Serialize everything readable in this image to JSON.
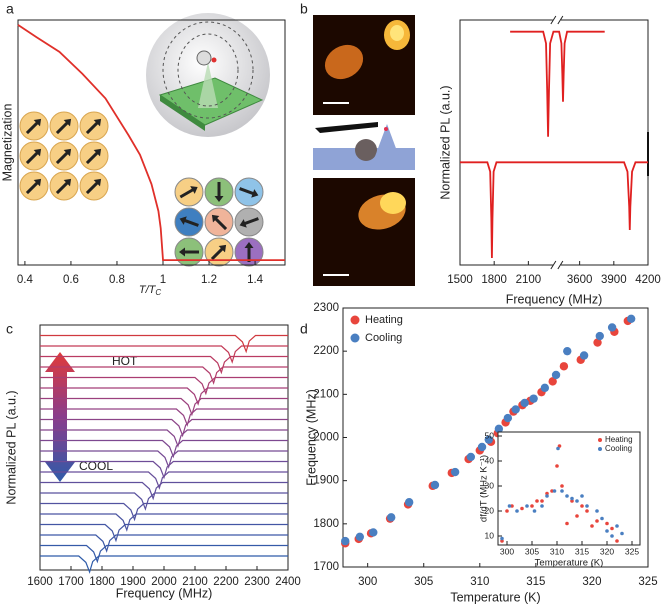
{
  "chart_data": [
    {
      "type": "line",
      "panel_label": "a",
      "xlabel": {
        "text": "T/T",
        "subscript": "C"
      },
      "ylabel": "Magnetization",
      "xlim": [
        0.37,
        1.53
      ],
      "xticks": [
        0.4,
        0.6,
        0.8,
        1.0,
        1.2,
        1.4
      ],
      "ylim": [
        0,
        1
      ],
      "series": [
        {
          "color": "#e0302a",
          "x": [
            0.37,
            0.45,
            0.55,
            0.65,
            0.75,
            0.85,
            0.9,
            0.95,
            0.98,
            0.99,
            1.0,
            1.02,
            1.53
          ],
          "values": [
            0.98,
            0.93,
            0.87,
            0.78,
            0.68,
            0.53,
            0.45,
            0.33,
            0.22,
            0.15,
            0.02,
            0.02,
            0.02
          ]
        }
      ]
    },
    {
      "type": "line",
      "panel_label": "b",
      "xlabel": "Frequency (MHz)",
      "ylabel": "Normalized PL (a.u.)",
      "xlim": [
        1500,
        4200
      ],
      "axis_break": [
        2350,
        3400
      ],
      "xticks": [
        1500,
        1800,
        2100,
        3600,
        3900,
        4200
      ],
      "ylim": [
        0,
        1.05
      ],
      "series": [
        {
          "color": "#e02020",
          "x": [
            1940,
            2230,
            2255,
            2265,
            2273,
            2281,
            2291,
            2320,
            2350,
            3400,
            3420,
            3440,
            3448,
            3454,
            3460,
            3468,
            3490,
            3820
          ],
          "values": [
            1.0,
            1.0,
            0.95,
            0.75,
            0.55,
            0.75,
            0.95,
            1.0,
            1.0,
            1.0,
            1.0,
            0.95,
            0.82,
            0.7,
            0.82,
            0.95,
            1.0,
            1.0
          ]
        },
        {
          "color": "#e02020",
          "x": [
            1500,
            1740,
            1765,
            1775,
            1780,
            1785,
            1795,
            1820,
            2350,
            3400,
            3990,
            4020,
            4035,
            4040,
            4045,
            4060,
            4090,
            4200
          ],
          "values": [
            0.44,
            0.44,
            0.4,
            0.2,
            0.03,
            0.2,
            0.4,
            0.44,
            0.44,
            0.44,
            0.44,
            0.4,
            0.25,
            0.15,
            0.25,
            0.4,
            0.44,
            0.44
          ]
        }
      ]
    },
    {
      "type": "ridgeline",
      "panel_label": "c",
      "xlabel": "Frequency (MHz)",
      "ylabel": "Normalized PL (a.u.)",
      "xlim": [
        1600,
        2400
      ],
      "xticks": [
        1600,
        1700,
        1800,
        1900,
        2000,
        2100,
        2200,
        2300,
        2400
      ],
      "annotations": [
        "HOT",
        "COOL"
      ],
      "series": [
        {
          "color": "#2e5ba9",
          "x": [
            1600,
            1725,
            1748,
            1760,
            1770,
            1790,
            2400
          ],
          "values": [
            0,
            0,
            -0.4,
            -1,
            -0.35,
            0,
            0
          ]
        },
        {
          "color": "#355aa8",
          "x": [
            1600,
            1750,
            1773,
            1785,
            1795,
            1815,
            2400
          ],
          "values": [
            0,
            0,
            -0.4,
            -1,
            -0.35,
            0,
            0
          ]
        },
        {
          "color": "#3c58a6",
          "x": [
            1600,
            1780,
            1803,
            1815,
            1825,
            1845,
            2400
          ],
          "values": [
            0,
            0,
            -0.4,
            -1,
            -0.35,
            0,
            0
          ]
        },
        {
          "color": "#4356a4",
          "x": [
            1600,
            1810,
            1833,
            1845,
            1855,
            1875,
            2400
          ],
          "values": [
            0,
            0,
            -0.4,
            -1,
            -0.35,
            0,
            0
          ]
        },
        {
          "color": "#4a55a2",
          "x": [
            1600,
            1845,
            1868,
            1880,
            1890,
            1910,
            2400
          ],
          "values": [
            0,
            0,
            -0.4,
            -1,
            -0.35,
            0,
            0
          ]
        },
        {
          "color": "#5253a0",
          "x": [
            1600,
            1870,
            1893,
            1905,
            1915,
            1935,
            2400
          ],
          "values": [
            0,
            0,
            -0.4,
            -1,
            -0.35,
            0,
            0
          ]
        },
        {
          "color": "#59519e",
          "x": [
            1600,
            1905,
            1928,
            1940,
            1950,
            1970,
            2400
          ],
          "values": [
            0,
            0,
            -0.4,
            -1,
            -0.35,
            0,
            0
          ]
        },
        {
          "color": "#60509c",
          "x": [
            1600,
            1930,
            1953,
            1965,
            1975,
            1995,
            2400
          ],
          "values": [
            0,
            0,
            -0.4,
            -1,
            -0.35,
            0,
            0
          ]
        },
        {
          "color": "#674e9a",
          "x": [
            1600,
            1950,
            1973,
            1985,
            1995,
            2015,
            2400
          ],
          "values": [
            0,
            0,
            -0.4,
            -1,
            -0.35,
            0,
            0
          ]
        },
        {
          "color": "#6e4c97",
          "x": [
            1600,
            1965,
            1988,
            2000,
            2010,
            2030,
            2400
          ],
          "values": [
            0,
            0,
            -0.4,
            -1,
            -0.35,
            0,
            0
          ]
        },
        {
          "color": "#764a94",
          "x": [
            1600,
            1980,
            2003,
            2015,
            2025,
            2045,
            2400
          ],
          "values": [
            0,
            0,
            -0.4,
            -1,
            -0.35,
            0,
            0
          ]
        },
        {
          "color": "#7d4890",
          "x": [
            1600,
            1995,
            2018,
            2030,
            2040,
            2060,
            2400
          ],
          "values": [
            0,
            0,
            -0.4,
            -1,
            -0.35,
            0,
            0
          ]
        },
        {
          "color": "#85468c",
          "x": [
            1600,
            2010,
            2033,
            2045,
            2055,
            2075,
            2400
          ],
          "values": [
            0,
            0,
            -0.4,
            -1,
            -0.35,
            0,
            0
          ]
        },
        {
          "color": "#8c4488",
          "x": [
            1600,
            2025,
            2048,
            2060,
            2070,
            2090,
            2400
          ],
          "values": [
            0,
            0,
            -0.4,
            -1,
            -0.35,
            0,
            0
          ]
        },
        {
          "color": "#944283",
          "x": [
            1600,
            2040,
            2063,
            2075,
            2085,
            2105,
            2400
          ],
          "values": [
            0,
            0,
            -0.4,
            -1,
            -0.35,
            0,
            0
          ]
        },
        {
          "color": "#9b407e",
          "x": [
            1600,
            2055,
            2078,
            2090,
            2100,
            2120,
            2400
          ],
          "values": [
            0,
            0,
            -0.4,
            -1,
            -0.35,
            0,
            0
          ]
        },
        {
          "color": "#a33e78",
          "x": [
            1600,
            2075,
            2098,
            2110,
            2120,
            2140,
            2400
          ],
          "values": [
            0,
            0,
            -0.4,
            -1,
            -0.35,
            0,
            0
          ]
        },
        {
          "color": "#aa3d72",
          "x": [
            1600,
            2100,
            2123,
            2135,
            2145,
            2165,
            2400
          ],
          "values": [
            0,
            0,
            -0.4,
            -1,
            -0.35,
            0,
            0
          ]
        },
        {
          "color": "#b23c6b",
          "x": [
            1600,
            2125,
            2148,
            2160,
            2170,
            2190,
            2400
          ],
          "values": [
            0,
            0,
            -0.4,
            -1,
            -0.35,
            0,
            0
          ]
        },
        {
          "color": "#ba3b62",
          "x": [
            1600,
            2150,
            2173,
            2185,
            2195,
            2215,
            2400
          ],
          "values": [
            0,
            0,
            -0.4,
            -1,
            -0.35,
            0,
            0
          ]
        },
        {
          "color": "#c33a56",
          "x": [
            1600,
            2185,
            2208,
            2220,
            2230,
            2250,
            2400
          ],
          "values": [
            0,
            0,
            -0.4,
            -1,
            -0.35,
            0,
            0
          ]
        },
        {
          "color": "#d0393f",
          "x": [
            1600,
            2230,
            2253,
            2265,
            2275,
            2295,
            2400
          ],
          "values": [
            0,
            0,
            -0.4,
            -1,
            -0.35,
            0,
            0
          ]
        }
      ]
    },
    {
      "type": "scatter",
      "panel_label": "d",
      "xlabel": "Temperature (K)",
      "ylabel": "Frequency (MHz)",
      "xlim": [
        297.8,
        325
      ],
      "xticks": [
        300,
        305,
        310,
        315,
        320,
        325
      ],
      "ylim": [
        1700,
        2300
      ],
      "yticks": [
        1700,
        1800,
        1900,
        2000,
        2100,
        2200,
        2300
      ],
      "legend": "upper left",
      "series": [
        {
          "name": "Heating",
          "color": "#e8453c",
          "x": [
            298,
            299.2,
            300.3,
            302,
            303.6,
            305.8,
            307.5,
            309,
            310,
            311,
            311.6,
            312.3,
            313,
            313.8,
            314.5,
            315.5,
            316.5,
            317.5,
            319,
            320.5,
            322,
            323.2
          ],
          "values": [
            1755,
            1765,
            1778,
            1812,
            1845,
            1888,
            1918,
            1950,
            1970,
            1990,
            2010,
            2035,
            2060,
            2075,
            2085,
            2105,
            2130,
            2165,
            2180,
            2220,
            2245,
            2270
          ]
        },
        {
          "name": "Cooling",
          "color": "#4a7fc1",
          "x": [
            298,
            299.3,
            300.5,
            302.1,
            303.7,
            306,
            307.8,
            309.2,
            310.2,
            310.8,
            311.7,
            312.5,
            313.2,
            314,
            314.8,
            315.8,
            316.8,
            317.8,
            319.3,
            320.7,
            321.8,
            323.5
          ],
          "values": [
            1760,
            1770,
            1780,
            1815,
            1850,
            1890,
            1920,
            1955,
            1978,
            1995,
            2020,
            2045,
            2065,
            2080,
            2090,
            2115,
            2145,
            2200,
            2190,
            2235,
            2255,
            2275
          ]
        }
      ]
    },
    {
      "type": "scatter",
      "xlabel": "Temperature (K)",
      "ylabel": "df/dT (MHz K⁻¹)",
      "xlim": [
        298.2,
        326.6
      ],
      "xticks": [
        300,
        305,
        310,
        315,
        320,
        325
      ],
      "ylim": [
        6.4,
        51.6
      ],
      "yticks": [
        10,
        20,
        30,
        40,
        50
      ],
      "legend": "upper right",
      "series": [
        {
          "name": "Heating",
          "color": "#e8453c",
          "x": [
            299,
            300,
            301,
            303,
            305,
            306,
            307,
            308,
            309,
            310,
            310.5,
            311,
            312,
            313,
            314,
            315,
            316,
            317,
            318,
            320,
            321,
            322
          ],
          "values": [
            8,
            20,
            22,
            21,
            22,
            24,
            24,
            27,
            28,
            38,
            46,
            30,
            15,
            24,
            18,
            22,
            20,
            14,
            16,
            15,
            13,
            8
          ]
        },
        {
          "name": "Cooling",
          "color": "#4a7fc1",
          "x": [
            299,
            300.5,
            302,
            304,
            305.5,
            307,
            308,
            309.5,
            310.2,
            311,
            312,
            313,
            314,
            315,
            316,
            318,
            319,
            320,
            321,
            322,
            323
          ],
          "values": [
            9,
            22,
            20,
            22,
            20,
            22,
            26,
            28,
            45,
            28,
            26,
            25,
            24,
            26,
            22,
            20,
            17,
            12,
            10,
            14,
            11
          ]
        }
      ]
    }
  ]
}
